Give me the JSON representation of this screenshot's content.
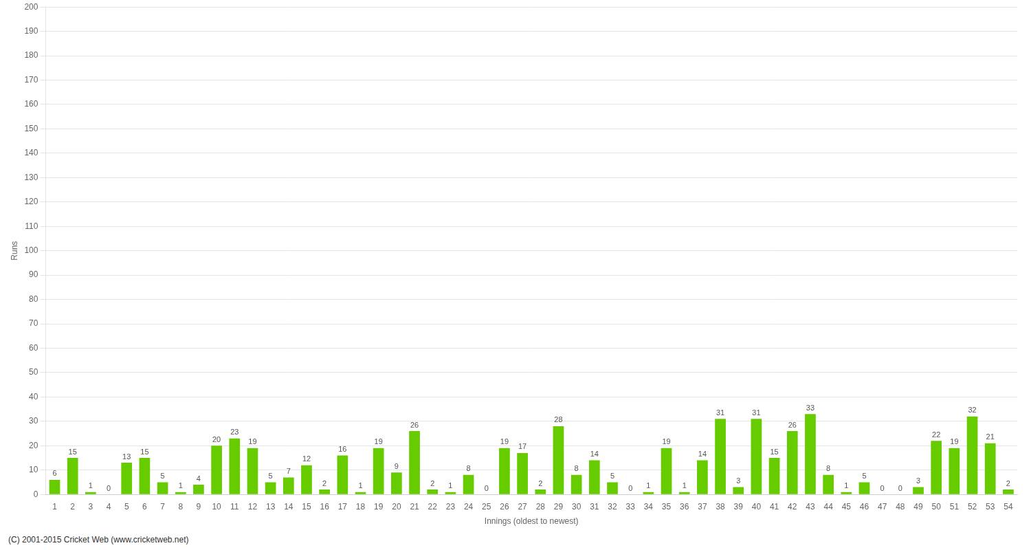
{
  "chart_data": {
    "type": "bar",
    "xlabel": "Innings (oldest to newest)",
    "ylabel": "Runs",
    "categories": [
      "1",
      "2",
      "3",
      "4",
      "5",
      "6",
      "7",
      "8",
      "9",
      "10",
      "11",
      "12",
      "13",
      "14",
      "15",
      "16",
      "17",
      "18",
      "19",
      "20",
      "21",
      "22",
      "23",
      "24",
      "25",
      "26",
      "27",
      "28",
      "29",
      "30",
      "31",
      "32",
      "33",
      "34",
      "35",
      "36",
      "37",
      "38",
      "39",
      "40",
      "41",
      "42",
      "43",
      "44",
      "45",
      "46",
      "47",
      "48",
      "49",
      "50",
      "51",
      "52",
      "53",
      "54"
    ],
    "values": [
      6,
      15,
      1,
      0,
      13,
      15,
      5,
      1,
      4,
      20,
      23,
      19,
      5,
      7,
      12,
      2,
      16,
      1,
      19,
      9,
      26,
      2,
      1,
      8,
      0,
      19,
      17,
      2,
      28,
      8,
      14,
      5,
      0,
      1,
      19,
      1,
      14,
      31,
      3,
      31,
      15,
      26,
      33,
      8,
      1,
      5,
      0,
      0,
      3,
      22,
      19,
      32,
      21,
      2
    ],
    "color": "#66cc00",
    "ylim": [
      0,
      200
    ],
    "yticks": [
      0,
      10,
      20,
      30,
      40,
      50,
      60,
      70,
      80,
      90,
      100,
      110,
      120,
      130,
      140,
      150,
      160,
      170,
      180,
      190,
      200
    ],
    "grid": true,
    "data_labels": true,
    "annotations": [
      "(C) 2001-2015 Cricket Web (www.cricketweb.net)"
    ]
  }
}
